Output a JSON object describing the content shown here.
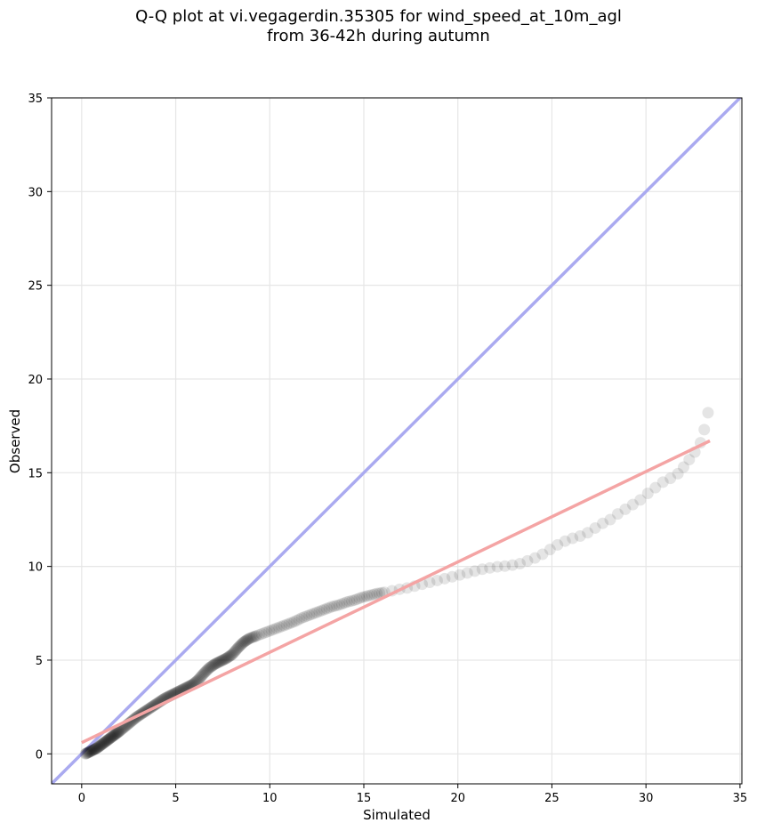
{
  "title_line1": "Q-Q plot at vi.vegagerdin.35305 for wind_speed_at_10m_agl",
  "title_line2": "from 36-42h during autumn",
  "chart_data": {
    "type": "scatter",
    "title": "Q-Q plot at vi.vegagerdin.35305 for wind_speed_at_10m_agl from 36-42h during autumn",
    "xlabel": "Simulated",
    "ylabel": "Observed",
    "xlim": [
      -1.6,
      35.1
    ],
    "ylim": [
      -1.6,
      35.0
    ],
    "xticks": [
      0,
      5,
      10,
      15,
      20,
      25,
      30,
      35
    ],
    "yticks": [
      0,
      5,
      10,
      15,
      20,
      25,
      30,
      35
    ],
    "grid": true,
    "reference_line": {
      "x": [
        -1.6,
        35.1
      ],
      "y": [
        -1.6,
        35.1
      ],
      "color": "#aaaaf0"
    },
    "fit_line": {
      "x": [
        0.0,
        33.4
      ],
      "y": [
        0.6,
        16.7
      ],
      "color": "#f4a4a4"
    },
    "point_color": "#000000",
    "quantiles": [
      [
        0.2,
        0.0
      ],
      [
        0.4,
        0.1
      ],
      [
        0.6,
        0.2
      ],
      [
        0.8,
        0.3
      ],
      [
        1.0,
        0.45
      ],
      [
        1.2,
        0.6
      ],
      [
        1.4,
        0.75
      ],
      [
        1.6,
        0.9
      ],
      [
        1.8,
        1.05
      ],
      [
        2.0,
        1.2
      ],
      [
        2.3,
        1.45
      ],
      [
        2.6,
        1.7
      ],
      [
        2.9,
        1.95
      ],
      [
        3.2,
        2.15
      ],
      [
        3.5,
        2.35
      ],
      [
        3.8,
        2.55
      ],
      [
        4.1,
        2.75
      ],
      [
        4.4,
        2.95
      ],
      [
        4.7,
        3.1
      ],
      [
        5.0,
        3.25
      ],
      [
        5.3,
        3.4
      ],
      [
        5.6,
        3.55
      ],
      [
        5.9,
        3.7
      ],
      [
        6.2,
        3.95
      ],
      [
        6.5,
        4.3
      ],
      [
        6.8,
        4.6
      ],
      [
        7.1,
        4.8
      ],
      [
        7.4,
        4.95
      ],
      [
        7.7,
        5.1
      ],
      [
        8.0,
        5.3
      ],
      [
        8.3,
        5.65
      ],
      [
        8.6,
        5.95
      ],
      [
        8.9,
        6.15
      ],
      [
        9.3,
        6.3
      ],
      [
        9.7,
        6.45
      ],
      [
        10.1,
        6.6
      ],
      [
        10.5,
        6.75
      ],
      [
        10.9,
        6.9
      ],
      [
        11.3,
        7.05
      ],
      [
        11.7,
        7.25
      ],
      [
        12.1,
        7.4
      ],
      [
        12.5,
        7.55
      ],
      [
        12.9,
        7.7
      ],
      [
        13.3,
        7.85
      ],
      [
        13.7,
        7.95
      ],
      [
        14.1,
        8.1
      ],
      [
        14.5,
        8.2
      ],
      [
        14.9,
        8.35
      ],
      [
        15.3,
        8.45
      ],
      [
        15.7,
        8.55
      ],
      [
        16.1,
        8.62
      ],
      [
        16.5,
        8.7
      ],
      [
        16.9,
        8.78
      ],
      [
        17.3,
        8.85
      ],
      [
        17.7,
        8.95
      ],
      [
        18.1,
        9.05
      ],
      [
        18.5,
        9.15
      ],
      [
        18.9,
        9.25
      ],
      [
        19.3,
        9.35
      ],
      [
        19.7,
        9.45
      ],
      [
        20.1,
        9.55
      ],
      [
        20.5,
        9.65
      ],
      [
        20.9,
        9.75
      ],
      [
        21.3,
        9.85
      ],
      [
        21.7,
        9.92
      ],
      [
        22.1,
        9.98
      ],
      [
        22.5,
        10.02
      ],
      [
        22.9,
        10.07
      ],
      [
        23.3,
        10.15
      ],
      [
        23.7,
        10.3
      ],
      [
        24.1,
        10.45
      ],
      [
        24.5,
        10.65
      ],
      [
        24.9,
        10.9
      ],
      [
        25.3,
        11.15
      ],
      [
        25.7,
        11.35
      ],
      [
        26.1,
        11.5
      ],
      [
        26.5,
        11.62
      ],
      [
        26.9,
        11.8
      ],
      [
        27.3,
        12.05
      ],
      [
        27.7,
        12.3
      ],
      [
        28.1,
        12.5
      ],
      [
        28.5,
        12.8
      ],
      [
        28.9,
        13.05
      ],
      [
        29.3,
        13.3
      ],
      [
        29.7,
        13.55
      ],
      [
        30.1,
        13.9
      ],
      [
        30.5,
        14.2
      ],
      [
        30.9,
        14.5
      ],
      [
        31.3,
        14.7
      ],
      [
        31.7,
        14.95
      ],
      [
        32.0,
        15.3
      ],
      [
        32.3,
        15.7
      ],
      [
        32.6,
        16.1
      ],
      [
        32.9,
        16.6
      ],
      [
        33.1,
        17.3
      ],
      [
        33.3,
        18.2
      ]
    ]
  }
}
